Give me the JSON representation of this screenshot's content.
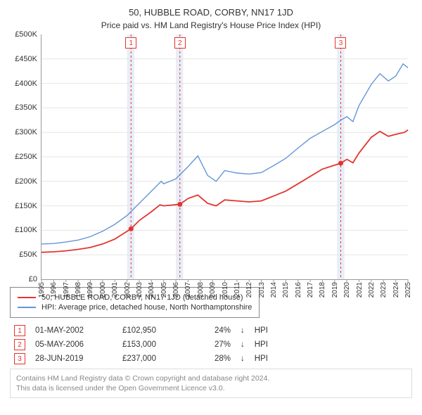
{
  "title": "50, HUBBLE ROAD, CORBY, NN17 1JD",
  "subtitle": "Price paid vs. HM Land Registry's House Price Index (HPI)",
  "chart": {
    "type": "line",
    "background_color": "#ffffff",
    "grid_color": "#e5e5e5",
    "axis_color": "#999999",
    "ylim": [
      0,
      500000
    ],
    "ytick_step": 50000,
    "yticks": [
      "£0",
      "£50K",
      "£100K",
      "£150K",
      "£200K",
      "£250K",
      "£300K",
      "£350K",
      "£400K",
      "£450K",
      "£500K"
    ],
    "xlim": [
      1995,
      2025
    ],
    "xticks": [
      1995,
      1996,
      1997,
      1998,
      1999,
      2000,
      2001,
      2002,
      2003,
      2004,
      2005,
      2006,
      2007,
      2008,
      2009,
      2010,
      2011,
      2012,
      2013,
      2014,
      2015,
      2016,
      2017,
      2018,
      2019,
      2020,
      2021,
      2022,
      2023,
      2024,
      2025
    ],
    "label_fontsize": 11,
    "series": [
      {
        "name_key": "legend.0",
        "color": "#e3342f",
        "line_width": 1.8,
        "data": [
          [
            1995,
            55000
          ],
          [
            1996,
            56000
          ],
          [
            1997,
            58000
          ],
          [
            1998,
            61000
          ],
          [
            1999,
            65000
          ],
          [
            2000,
            72000
          ],
          [
            2001,
            82000
          ],
          [
            2001.5,
            90000
          ],
          [
            2002.33,
            102950
          ],
          [
            2003,
            120000
          ],
          [
            2004,
            138000
          ],
          [
            2004.7,
            152000
          ],
          [
            2005,
            150000
          ],
          [
            2006.33,
            153000
          ],
          [
            2007,
            165000
          ],
          [
            2007.8,
            172000
          ],
          [
            2008.6,
            155000
          ],
          [
            2009.3,
            150000
          ],
          [
            2010,
            162000
          ],
          [
            2011,
            160000
          ],
          [
            2012,
            158000
          ],
          [
            2013,
            160000
          ],
          [
            2014,
            170000
          ],
          [
            2015,
            180000
          ],
          [
            2016,
            195000
          ],
          [
            2017,
            210000
          ],
          [
            2018,
            225000
          ],
          [
            2019.5,
            237000
          ],
          [
            2020,
            245000
          ],
          [
            2020.5,
            238000
          ],
          [
            2021,
            258000
          ],
          [
            2022,
            290000
          ],
          [
            2022.7,
            302000
          ],
          [
            2023.4,
            292000
          ],
          [
            2024,
            296000
          ],
          [
            2024.7,
            300000
          ],
          [
            2025,
            305000
          ]
        ]
      },
      {
        "name_key": "legend.1",
        "color": "#6495d6",
        "line_width": 1.4,
        "data": [
          [
            1995,
            72000
          ],
          [
            1996,
            73000
          ],
          [
            1997,
            76000
          ],
          [
            1998,
            80000
          ],
          [
            1999,
            87000
          ],
          [
            2000,
            98000
          ],
          [
            2001,
            112000
          ],
          [
            2002,
            130000
          ],
          [
            2003,
            155000
          ],
          [
            2004,
            180000
          ],
          [
            2004.8,
            200000
          ],
          [
            2005,
            195000
          ],
          [
            2006,
            205000
          ],
          [
            2007,
            230000
          ],
          [
            2007.8,
            252000
          ],
          [
            2008.6,
            212000
          ],
          [
            2009.3,
            200000
          ],
          [
            2010,
            222000
          ],
          [
            2011,
            217000
          ],
          [
            2012,
            215000
          ],
          [
            2013,
            218000
          ],
          [
            2014,
            232000
          ],
          [
            2015,
            247000
          ],
          [
            2016,
            268000
          ],
          [
            2017,
            288000
          ],
          [
            2018,
            302000
          ],
          [
            2019,
            316000
          ],
          [
            2019.5,
            325000
          ],
          [
            2020,
            332000
          ],
          [
            2020.5,
            322000
          ],
          [
            2021,
            355000
          ],
          [
            2022,
            398000
          ],
          [
            2022.7,
            420000
          ],
          [
            2023.4,
            405000
          ],
          [
            2024,
            415000
          ],
          [
            2024.6,
            440000
          ],
          [
            2025,
            432000
          ]
        ]
      }
    ],
    "bands": [
      {
        "from": 2002.0,
        "to": 2002.6,
        "color": "#e8eef8"
      },
      {
        "from": 2006.0,
        "to": 2006.6,
        "color": "#e8eef8"
      },
      {
        "from": 2019.2,
        "to": 2019.8,
        "color": "#e8eef8"
      }
    ],
    "markers": [
      {
        "label": "1",
        "x": 2002.33,
        "y": 102950,
        "dash_color": "#e3342f"
      },
      {
        "label": "2",
        "x": 2006.33,
        "y": 153000,
        "dash_color": "#e3342f"
      },
      {
        "label": "3",
        "x": 2019.5,
        "y": 237000,
        "dash_color": "#e3342f"
      }
    ],
    "dot_color": "#e3342f",
    "dot_radius": 3.5
  },
  "legend": [
    "50, HUBBLE ROAD, CORBY, NN17 1JD (detached house)",
    "HPI: Average price, detached house, North Northamptonshire"
  ],
  "marker_notes": [
    {
      "n": "1",
      "date": "01-MAY-2002",
      "price": "£102,950",
      "pct": "24%",
      "sym": "↓",
      "tail": "HPI"
    },
    {
      "n": "2",
      "date": "05-MAY-2006",
      "price": "£153,000",
      "pct": "27%",
      "sym": "↓",
      "tail": "HPI"
    },
    {
      "n": "3",
      "date": "28-JUN-2019",
      "price": "£237,000",
      "pct": "28%",
      "sym": "↓",
      "tail": "HPI"
    }
  ],
  "footer": {
    "l1": "Contains HM Land Registry data © Crown copyright and database right 2024.",
    "l2": "This data is licensed under the Open Government Licence v3.0."
  }
}
